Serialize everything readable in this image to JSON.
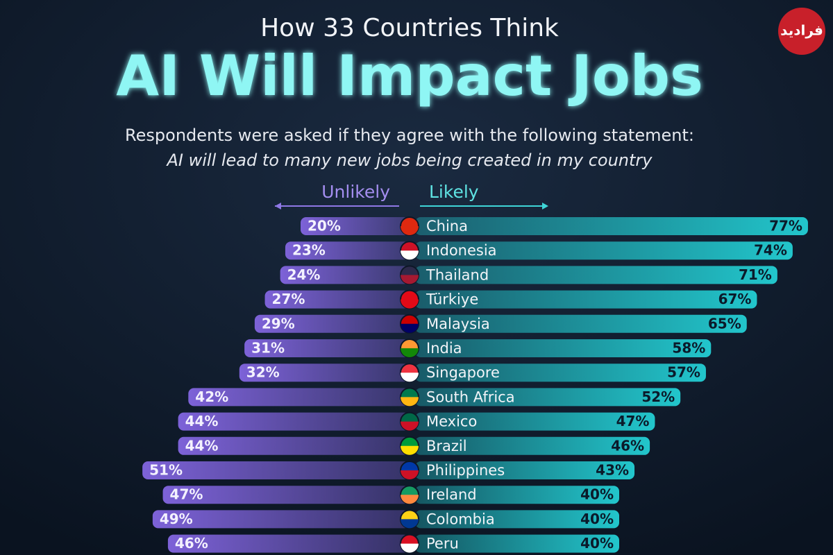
{
  "chart_data": {
    "type": "diverging-bar",
    "title": "How 33 Countries Think",
    "headline": "AI Will Impact Jobs",
    "subtitle": "Respondents were asked if they agree with the following statement:",
    "statement": "AI will lead to many new jobs being created in my country",
    "logo": "فرادید",
    "categories": [
      "China",
      "Indonesia",
      "Thailand",
      "Türkiye",
      "Malaysia",
      "India",
      "Singapore",
      "South Africa",
      "Mexico",
      "Brazil",
      "Philippines",
      "Ireland",
      "Colombia",
      "Peru"
    ],
    "series": [
      {
        "name": "Unlikely",
        "color": "#7d62d8",
        "side": "left",
        "values": [
          20,
          23,
          24,
          27,
          29,
          31,
          32,
          42,
          44,
          44,
          51,
          47,
          49,
          46
        ],
        "value_labels": [
          "20%",
          "23%",
          "24%",
          "27%",
          "29%",
          "31%",
          "32%",
          "42%",
          "44%",
          "44%",
          "51%",
          "47%",
          "49%",
          "46%"
        ]
      },
      {
        "name": "Likely",
        "color": "#22c6cc",
        "side": "right",
        "values": [
          77,
          74,
          71,
          67,
          65,
          58,
          57,
          52,
          47,
          46,
          43,
          40,
          40,
          40
        ],
        "value_labels": [
          "77%",
          "74%",
          "71%",
          "67%",
          "65%",
          "58%",
          "57%",
          "52%",
          "47%",
          "46%",
          "43%",
          "40%",
          "40%",
          "40%"
        ]
      }
    ]
  }
}
